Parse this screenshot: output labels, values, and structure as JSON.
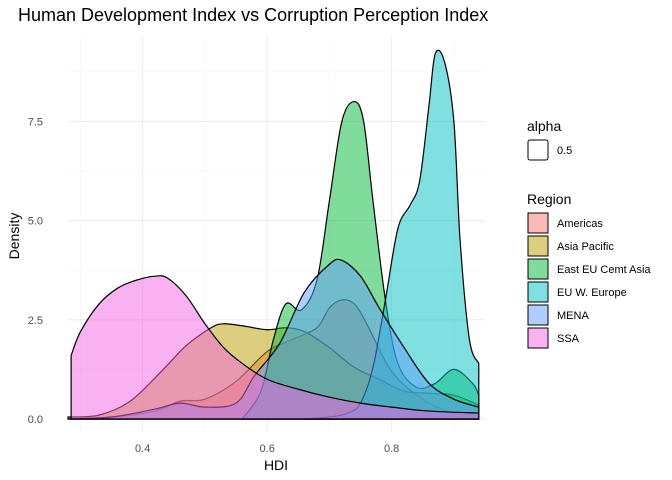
{
  "chart_data": {
    "type": "area",
    "title": "Human Development Index vs Corruption Perception Index",
    "xlabel": "HDI",
    "ylabel": "Density",
    "xlim": [
      0.28,
      0.95
    ],
    "ylim": [
      0,
      9.3
    ],
    "x_ticks": [
      0.4,
      0.6,
      0.8
    ],
    "x_tick_labels": [
      "0.4",
      "0.6",
      "0.8"
    ],
    "y_ticks": [
      0,
      2.5,
      5,
      7.5
    ],
    "y_tick_labels": [
      "0.0",
      "2.5",
      "5.0",
      "7.5"
    ],
    "grid": true,
    "legend_position": "right",
    "legend": {
      "alpha_title": "alpha",
      "alpha_label": "0.5",
      "region_title": "Region"
    },
    "series": [
      {
        "name": "Americas",
        "color": "#F8766D",
        "x": [
          0.28,
          0.35,
          0.42,
          0.46,
          0.5,
          0.55,
          0.6,
          0.64,
          0.68,
          0.7,
          0.72,
          0.74,
          0.76,
          0.8,
          0.85,
          0.9,
          0.94
        ],
        "y": [
          0.0,
          0.05,
          0.2,
          0.45,
          0.5,
          0.95,
          1.7,
          2.0,
          2.3,
          2.8,
          3.0,
          2.9,
          2.4,
          1.2,
          0.5,
          0.15,
          0.1
        ]
      },
      {
        "name": "Asia Pacific",
        "color": "#B79F00",
        "x": [
          0.28,
          0.33,
          0.38,
          0.43,
          0.47,
          0.51,
          0.53,
          0.56,
          0.6,
          0.63,
          0.66,
          0.7,
          0.74,
          0.78,
          0.82,
          0.86,
          0.9,
          0.94
        ],
        "y": [
          0.05,
          0.1,
          0.45,
          1.2,
          1.85,
          2.3,
          2.4,
          2.35,
          2.25,
          2.3,
          2.2,
          1.8,
          1.3,
          1.0,
          0.7,
          0.65,
          0.6,
          0.35
        ]
      },
      {
        "name": "East EU Cemt Asia",
        "color": "#00BA38",
        "x": [
          0.56,
          0.59,
          0.61,
          0.63,
          0.655,
          0.68,
          0.7,
          0.72,
          0.74,
          0.755,
          0.77,
          0.79,
          0.81,
          0.84,
          0.87,
          0.9,
          0.93,
          0.94
        ],
        "y": [
          0.0,
          0.7,
          2.0,
          2.9,
          2.75,
          3.5,
          5.5,
          7.5,
          8.0,
          7.5,
          5.5,
          3.0,
          1.4,
          0.8,
          0.9,
          1.25,
          0.9,
          0.6
        ]
      },
      {
        "name": "EU W. Europe",
        "color": "#00BFC4",
        "x": [
          0.66,
          0.7,
          0.73,
          0.75,
          0.77,
          0.79,
          0.81,
          0.83,
          0.845,
          0.86,
          0.87,
          0.885,
          0.9,
          0.91,
          0.925,
          0.94
        ],
        "y": [
          0.0,
          0.05,
          0.15,
          0.4,
          1.3,
          3.0,
          4.8,
          5.4,
          6.0,
          7.9,
          9.2,
          9.0,
          7.5,
          4.5,
          2.0,
          1.4
        ]
      },
      {
        "name": "MENA",
        "color": "#619CFF",
        "x": [
          0.28,
          0.35,
          0.42,
          0.46,
          0.5,
          0.55,
          0.58,
          0.62,
          0.66,
          0.7,
          0.72,
          0.75,
          0.78,
          0.82,
          0.86,
          0.9,
          0.94
        ],
        "y": [
          0.0,
          0.05,
          0.25,
          0.4,
          0.3,
          0.4,
          1.1,
          1.9,
          3.2,
          3.9,
          4.0,
          3.6,
          2.8,
          1.8,
          0.9,
          0.5,
          0.3
        ]
      },
      {
        "name": "SSA",
        "color": "#F564E3",
        "x": [
          0.285,
          0.3,
          0.33,
          0.36,
          0.39,
          0.42,
          0.44,
          0.47,
          0.5,
          0.53,
          0.56,
          0.6,
          0.65,
          0.7,
          0.75,
          0.8,
          0.86,
          0.94
        ],
        "y": [
          1.6,
          2.2,
          2.9,
          3.3,
          3.5,
          3.6,
          3.55,
          3.1,
          2.4,
          1.8,
          1.4,
          1.0,
          0.75,
          0.55,
          0.4,
          0.3,
          0.2,
          0.15
        ]
      }
    ]
  }
}
